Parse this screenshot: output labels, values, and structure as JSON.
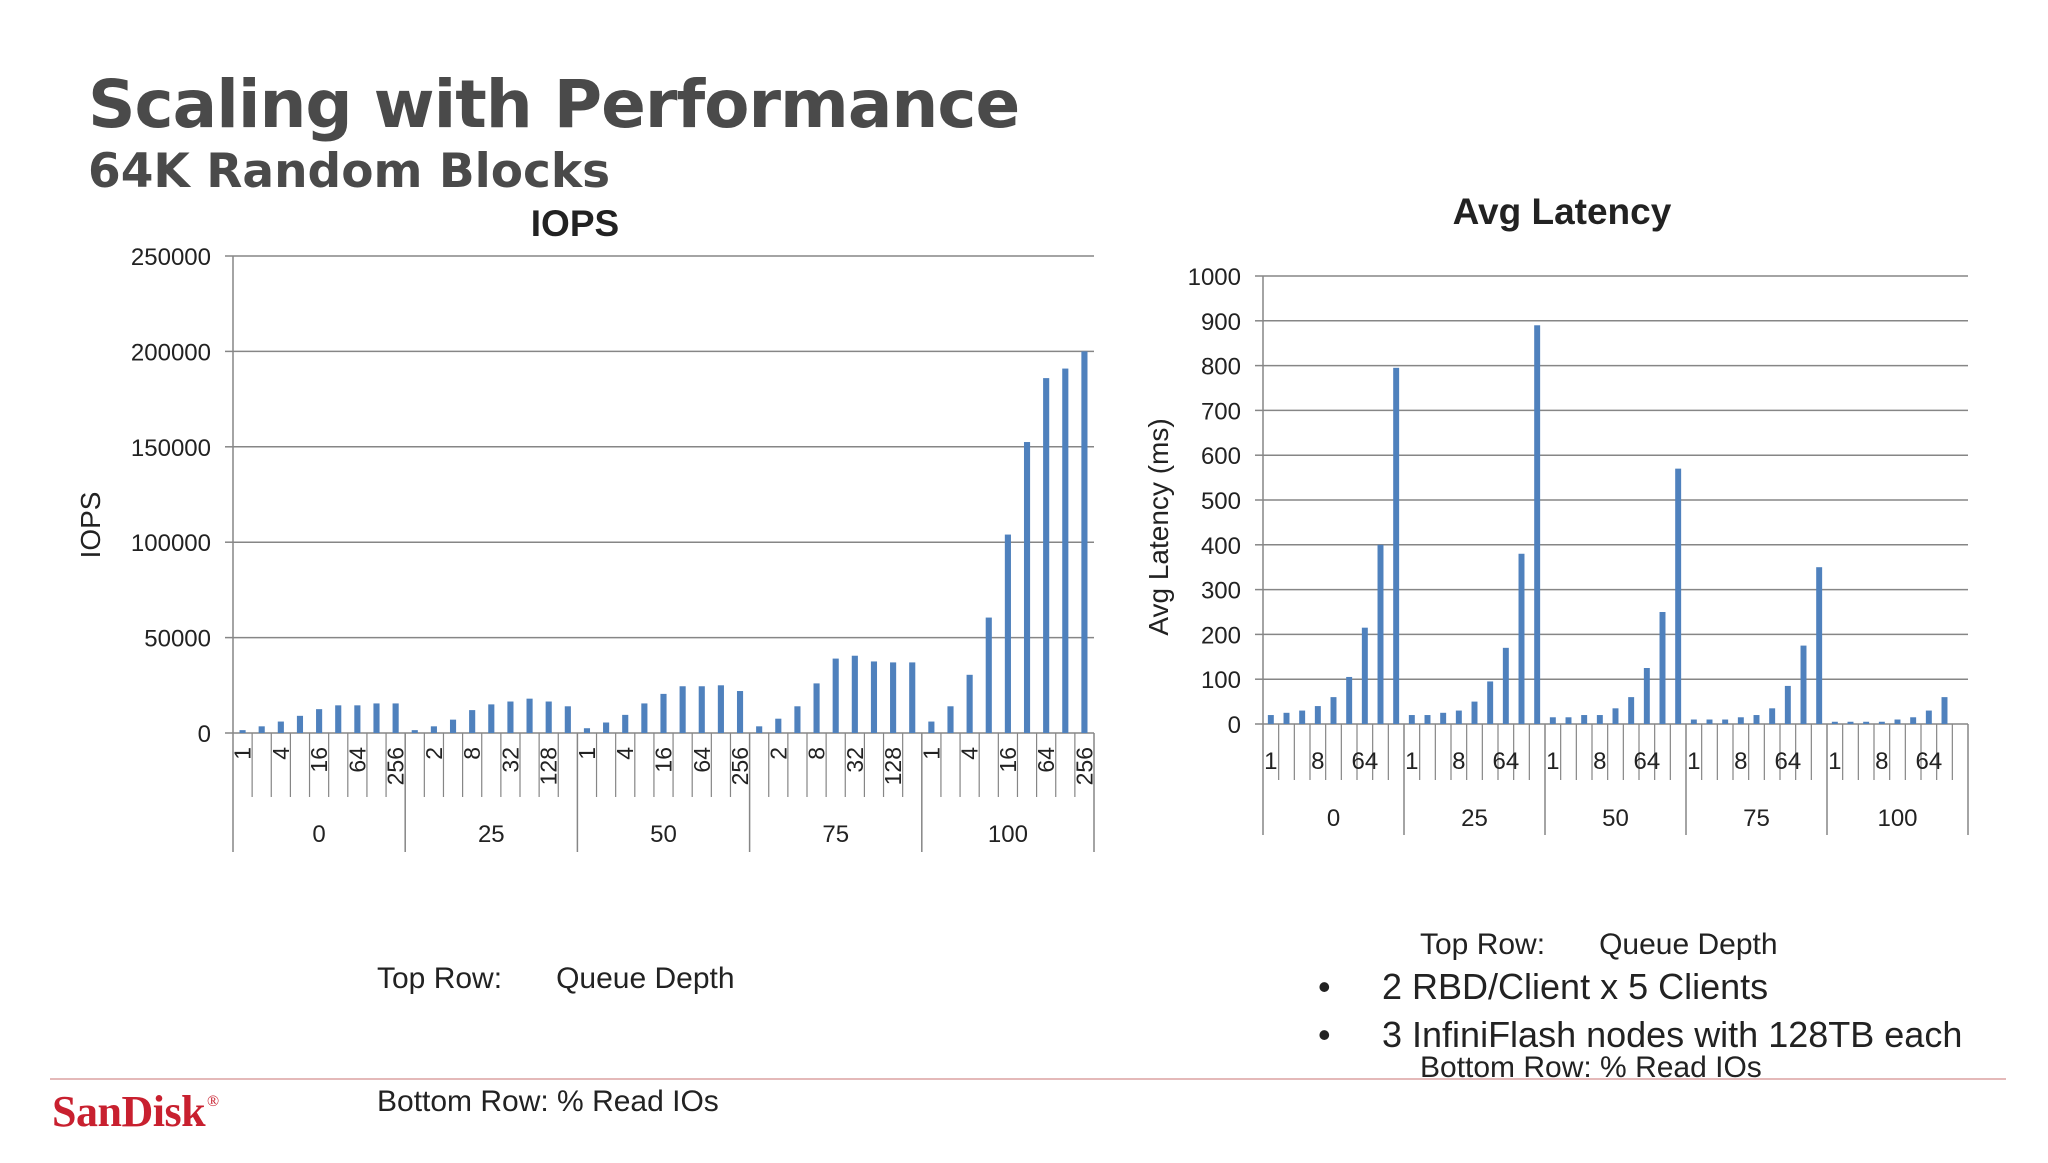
{
  "slide": {
    "title": "Scaling with Performance",
    "subtitle": "64K Random Blocks",
    "bullets": [
      "2 RBD/Client x  5 Clients",
      "3 InfiniFlash nodes with 128TB each"
    ],
    "bullet_glyph": "•",
    "logo_text": "SanDisk",
    "logo_mark": "®",
    "brand_color": "#c8202f"
  },
  "chart_data": [
    {
      "type": "bar",
      "title": "IOPS",
      "xlabel": "",
      "ylabel": "IOPS",
      "ylim": [
        0,
        250000
      ],
      "yticks": [
        0,
        50000,
        100000,
        150000,
        200000,
        250000
      ],
      "grid": true,
      "bar_color": "#4f81bd",
      "categories_outer": [
        "0",
        "25",
        "50",
        "75",
        "100"
      ],
      "categories_inner": [
        "1",
        "2",
        "4",
        "8",
        "16",
        "32",
        "64",
        "128",
        "256"
      ],
      "inner_tick_labels": [
        [
          "1",
          "",
          "4",
          "",
          "16",
          "",
          "64",
          "",
          "256"
        ],
        [
          "",
          "2",
          "",
          "8",
          "",
          "32",
          "",
          "128",
          ""
        ],
        [
          "1",
          "",
          "4",
          "",
          "16",
          "",
          "64",
          "",
          "256"
        ],
        [
          "",
          "2",
          "",
          "8",
          "",
          "32",
          "",
          "128",
          ""
        ],
        [
          "1",
          "",
          "4",
          "",
          "16",
          "",
          "64",
          "",
          "256"
        ]
      ],
      "values": [
        [
          1500,
          3500,
          6000,
          9000,
          12500,
          14500,
          14500,
          15500,
          15500
        ],
        [
          1500,
          3500,
          7000,
          12000,
          15000,
          16500,
          18000,
          16500,
          14000
        ],
        [
          2500,
          5500,
          9500,
          15500,
          20500,
          24500,
          24500,
          25000,
          22000
        ],
        [
          3500,
          7500,
          14000,
          26000,
          39000,
          40500,
          37500,
          37000,
          37000
        ],
        [
          6000,
          14000,
          30500,
          60500,
          104000,
          152500,
          186000,
          191000,
          200000
        ]
      ],
      "legend_note": {
        "top_row_label": "Top Row:",
        "top_row_value": "Queue Depth",
        "bottom_row": "Bottom Row: % Read IOs"
      }
    },
    {
      "type": "bar",
      "title": "Avg Latency",
      "xlabel": "",
      "ylabel": "Avg Latency (ms)",
      "ylim": [
        0,
        1000
      ],
      "yticks": [
        0,
        100,
        200,
        300,
        400,
        500,
        600,
        700,
        800,
        900,
        1000
      ],
      "grid": true,
      "bar_color": "#4f81bd",
      "categories_outer": [
        "0",
        "25",
        "50",
        "75",
        "100"
      ],
      "categories_inner": [
        "1",
        "2",
        "4",
        "8",
        "16",
        "32",
        "64",
        "128",
        "256"
      ],
      "inner_tick_labels": [
        [
          "1",
          "",
          "",
          "8",
          "",
          "",
          "64",
          "",
          ""
        ],
        [
          "1",
          "",
          "",
          "8",
          "",
          "",
          "64",
          "",
          ""
        ],
        [
          "1",
          "",
          "",
          "8",
          "",
          "",
          "64",
          "",
          ""
        ],
        [
          "1",
          "",
          "",
          "8",
          "",
          "",
          "64",
          "",
          ""
        ],
        [
          "1",
          "",
          "",
          "8",
          "",
          "",
          "64",
          "",
          ""
        ]
      ],
      "values": [
        [
          20,
          25,
          30,
          40,
          60,
          105,
          215,
          400,
          795
        ],
        [
          20,
          20,
          25,
          30,
          50,
          95,
          170,
          380,
          890
        ],
        [
          15,
          15,
          20,
          20,
          35,
          60,
          125,
          250,
          570
        ],
        [
          10,
          10,
          10,
          15,
          20,
          35,
          85,
          175,
          350
        ],
        [
          5,
          5,
          5,
          5,
          10,
          15,
          30,
          60,
          0
        ]
      ],
      "legend_note": {
        "top_row_label": "Top Row:",
        "top_row_value": "Queue Depth",
        "bottom_row": "Bottom Row: % Read IOs"
      }
    }
  ]
}
